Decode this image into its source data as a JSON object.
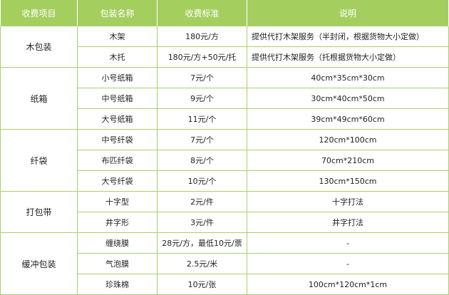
{
  "header": [
    "收费项目",
    "包装名称",
    "收费标准",
    "说明"
  ],
  "groups": [
    {
      "category": "木包装",
      "rows": [
        {
          "name": "木架",
          "price": "180元/方",
          "note": "提供代打木架服务（半封闭，根据货物大小定做）"
        },
        {
          "name": "木托",
          "price": "180元/方+50元/托",
          "note": "提供代打木架服务（托根据货物大小定做）"
        }
      ]
    },
    {
      "category": "纸箱",
      "rows": [
        {
          "name": "小号纸箱",
          "price": "7元/个",
          "note": "40cm*35cm*30cm"
        },
        {
          "name": "中号纸箱",
          "price": "9元/个",
          "note": "30cm*40cm*50cm"
        },
        {
          "name": "大号纸箱",
          "price": "11元/个",
          "note": "39cm*49cm*60cm"
        }
      ]
    },
    {
      "category": "纤袋",
      "rows": [
        {
          "name": "中号纤袋",
          "price": "7元/个",
          "note": "120cm*100cm"
        },
        {
          "name": "布匹纤袋",
          "price": "8元/个",
          "note": "70cm*210cm"
        },
        {
          "name": "大号纤袋",
          "price": "10元/个",
          "note": "130cm*150cm"
        }
      ]
    },
    {
      "category": "打包带",
      "rows": [
        {
          "name": "十字型",
          "price": "2元/件",
          "note": "十字打法"
        },
        {
          "name": "井字形",
          "price": "3元/件",
          "note": "井字打法"
        }
      ]
    },
    {
      "category": "缓冲包装",
      "rows": [
        {
          "name": "缠绕膜",
          "price": "28元/方，最低10元/票",
          "note": "-"
        },
        {
          "name": "气泡膜",
          "price": "2.5元/米",
          "note": "-"
        },
        {
          "name": "珍珠棉",
          "price": "10元/张",
          "note": "100cm*120cm*1cm"
        }
      ]
    }
  ],
  "colors": {
    "header_bg": "#a4cf5f",
    "border": "#a9d06a"
  }
}
